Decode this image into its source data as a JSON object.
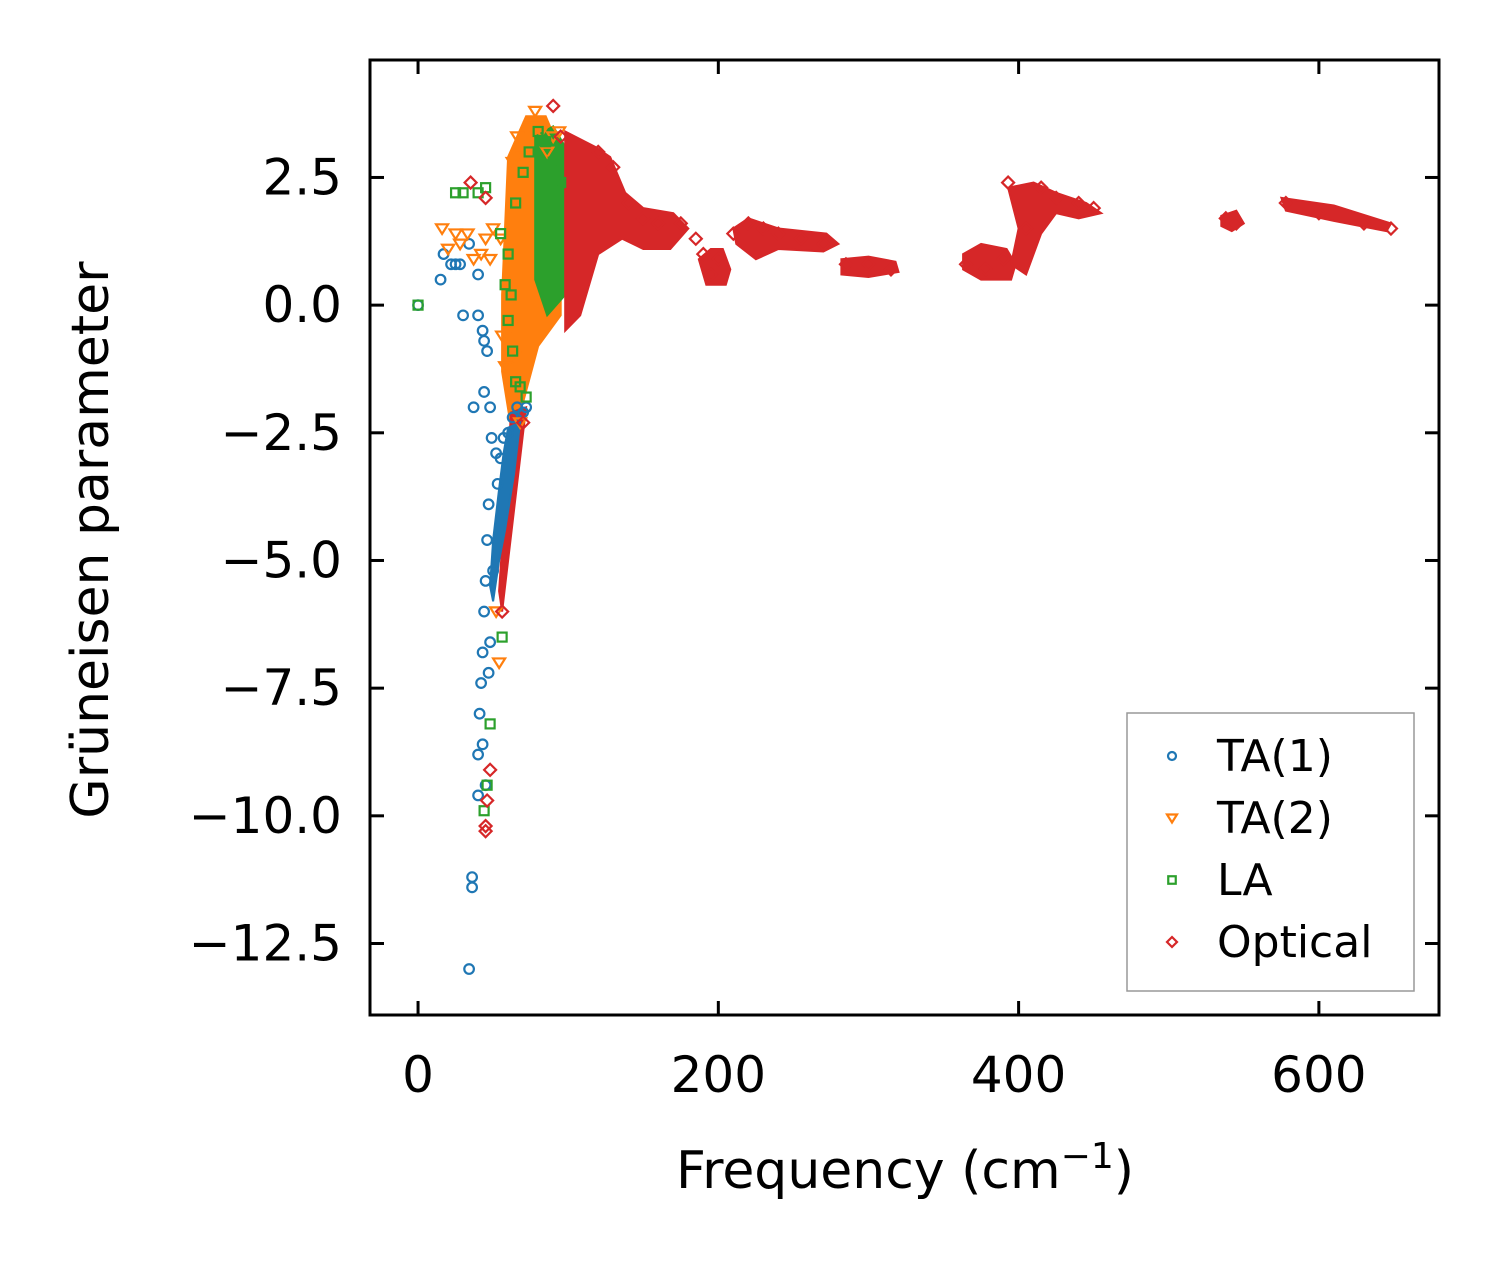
{
  "chart_data": {
    "type": "scatter",
    "title": "",
    "xlabel": "Frequency (cm",
    "xlabel_sup": "−1",
    "xlabel_end": ")",
    "ylabel": "Grüneisen parameter",
    "xlim": [
      -32,
      680
    ],
    "ylim": [
      -13.9,
      4.8
    ],
    "xticks": [
      0,
      200,
      400,
      600
    ],
    "xtick_labels": [
      "0",
      "200",
      "400",
      "600"
    ],
    "yticks": [
      2.5,
      0,
      -2.5,
      -5,
      -7.5,
      -10,
      -12.5
    ],
    "ytick_labels": [
      "2.5",
      "0.0",
      "−2.5",
      "−5.0",
      "−7.5",
      "−10.0",
      "−12.5"
    ],
    "grid": false,
    "legend_position": "lower-right",
    "colors": {
      "ta1": "#1f77b4",
      "ta2": "#ff7f0e",
      "la": "#2ca02c",
      "optical": "#d62728",
      "axis": "#000000",
      "legend_border": "#999999"
    },
    "series": [
      {
        "name": "TA(1)",
        "key": "ta1",
        "marker": "circle",
        "points": [
          [
            0,
            0
          ],
          [
            15,
            0.5
          ],
          [
            17,
            1.0
          ],
          [
            22,
            0.8
          ],
          [
            25,
            0.8
          ],
          [
            28,
            0.8
          ],
          [
            30,
            -0.2
          ],
          [
            34,
            1.2
          ],
          [
            37,
            -2.0
          ],
          [
            40,
            -0.2
          ],
          [
            40,
            0.6
          ],
          [
            43,
            -0.5
          ],
          [
            44,
            -0.7
          ],
          [
            44,
            -1.7
          ],
          [
            46,
            -0.9
          ],
          [
            48,
            -2.0
          ],
          [
            49,
            -2.6
          ],
          [
            47,
            -3.9
          ],
          [
            46,
            -4.6
          ],
          [
            45,
            -5.4
          ],
          [
            44,
            -6.0
          ],
          [
            43,
            -6.8
          ],
          [
            42,
            -7.4
          ],
          [
            41,
            -8.0
          ],
          [
            40,
            -8.8
          ],
          [
            43,
            -8.6
          ],
          [
            45,
            -9.4
          ],
          [
            40,
            -9.6
          ],
          [
            36,
            -11.2
          ],
          [
            36,
            -11.4
          ],
          [
            34,
            -13.0
          ],
          [
            52,
            -2.9
          ],
          [
            53,
            -3.5
          ],
          [
            55,
            -3.0
          ],
          [
            57,
            -2.6
          ],
          [
            60,
            -2.5
          ],
          [
            63,
            -2.2
          ],
          [
            66,
            -2.0
          ],
          [
            70,
            -2.1
          ],
          [
            72,
            -2.0
          ],
          [
            50,
            -5.2
          ],
          [
            48,
            -6.6
          ],
          [
            47,
            -7.2
          ]
        ]
      },
      {
        "name": "TA(2)",
        "key": "ta2",
        "marker": "triangle",
        "points": [
          [
            16,
            1.5
          ],
          [
            20,
            1.1
          ],
          [
            25,
            1.4
          ],
          [
            28,
            1.2
          ],
          [
            33,
            1.4
          ],
          [
            37,
            0.9
          ],
          [
            42,
            1.0
          ],
          [
            45,
            1.3
          ],
          [
            48,
            0.9
          ],
          [
            50,
            1.5
          ],
          [
            55,
            1.3
          ],
          [
            60,
            0.4
          ],
          [
            62,
            -0.4
          ],
          [
            64,
            -1.0
          ],
          [
            66,
            -1.5
          ],
          [
            68,
            -2.3
          ],
          [
            63,
            2.8
          ],
          [
            66,
            3.3
          ],
          [
            70,
            2.9
          ],
          [
            75,
            3.5
          ],
          [
            78,
            3.8
          ],
          [
            82,
            3.4
          ],
          [
            86,
            3.0
          ],
          [
            90,
            3.3
          ],
          [
            94,
            3.4
          ],
          [
            58,
            -1.2
          ],
          [
            56,
            -0.6
          ],
          [
            52,
            -6.0
          ],
          [
            54,
            -7.0
          ]
        ]
      },
      {
        "name": "LA",
        "key": "la",
        "marker": "square",
        "points": [
          [
            0,
            0
          ],
          [
            25,
            2.2
          ],
          [
            30,
            2.2
          ],
          [
            40,
            2.2
          ],
          [
            45,
            2.3
          ],
          [
            55,
            1.4
          ],
          [
            58,
            0.4
          ],
          [
            62,
            0.2
          ],
          [
            60,
            -0.3
          ],
          [
            63,
            -0.9
          ],
          [
            65,
            -1.5
          ],
          [
            68,
            -1.6
          ],
          [
            72,
            -1.8
          ],
          [
            48,
            -8.2
          ],
          [
            46,
            -9.4
          ],
          [
            44,
            -9.9
          ],
          [
            56,
            -6.5
          ],
          [
            60,
            1.0
          ],
          [
            65,
            2.0
          ],
          [
            70,
            2.6
          ],
          [
            74,
            3.0
          ],
          [
            80,
            3.4
          ],
          [
            85,
            3.2
          ],
          [
            90,
            2.8
          ],
          [
            95,
            2.4
          ]
        ]
      },
      {
        "name": "Optical",
        "key": "optical",
        "marker": "diamond",
        "points": [
          [
            90,
            3.9
          ],
          [
            95,
            3.3
          ],
          [
            120,
            3.0
          ],
          [
            130,
            2.7
          ],
          [
            140,
            2.0
          ],
          [
            150,
            1.7
          ],
          [
            160,
            1.6
          ],
          [
            175,
            1.6
          ],
          [
            185,
            1.3
          ],
          [
            190,
            1.0
          ],
          [
            195,
            0.6
          ],
          [
            200,
            0.9
          ],
          [
            210,
            1.4
          ],
          [
            220,
            1.6
          ],
          [
            230,
            1.5
          ],
          [
            240,
            1.4
          ],
          [
            255,
            1.3
          ],
          [
            270,
            1.2
          ],
          [
            285,
            0.8
          ],
          [
            300,
            0.8
          ],
          [
            315,
            0.7
          ],
          [
            365,
            0.8
          ],
          [
            378,
            0.7
          ],
          [
            390,
            0.9
          ],
          [
            393,
            2.4
          ],
          [
            405,
            1.5
          ],
          [
            415,
            2.3
          ],
          [
            425,
            2.1
          ],
          [
            440,
            2.0
          ],
          [
            450,
            1.9
          ],
          [
            538,
            1.7
          ],
          [
            545,
            1.6
          ],
          [
            578,
            2.0
          ],
          [
            600,
            1.8
          ],
          [
            630,
            1.6
          ],
          [
            648,
            1.5
          ],
          [
            48,
            -9.1
          ],
          [
            46,
            -9.7
          ],
          [
            45,
            -10.2
          ],
          [
            45,
            -10.3
          ],
          [
            56,
            -6.0
          ],
          [
            70,
            -2.3
          ],
          [
            35,
            2.4
          ],
          [
            45,
            2.1
          ]
        ]
      }
    ]
  }
}
